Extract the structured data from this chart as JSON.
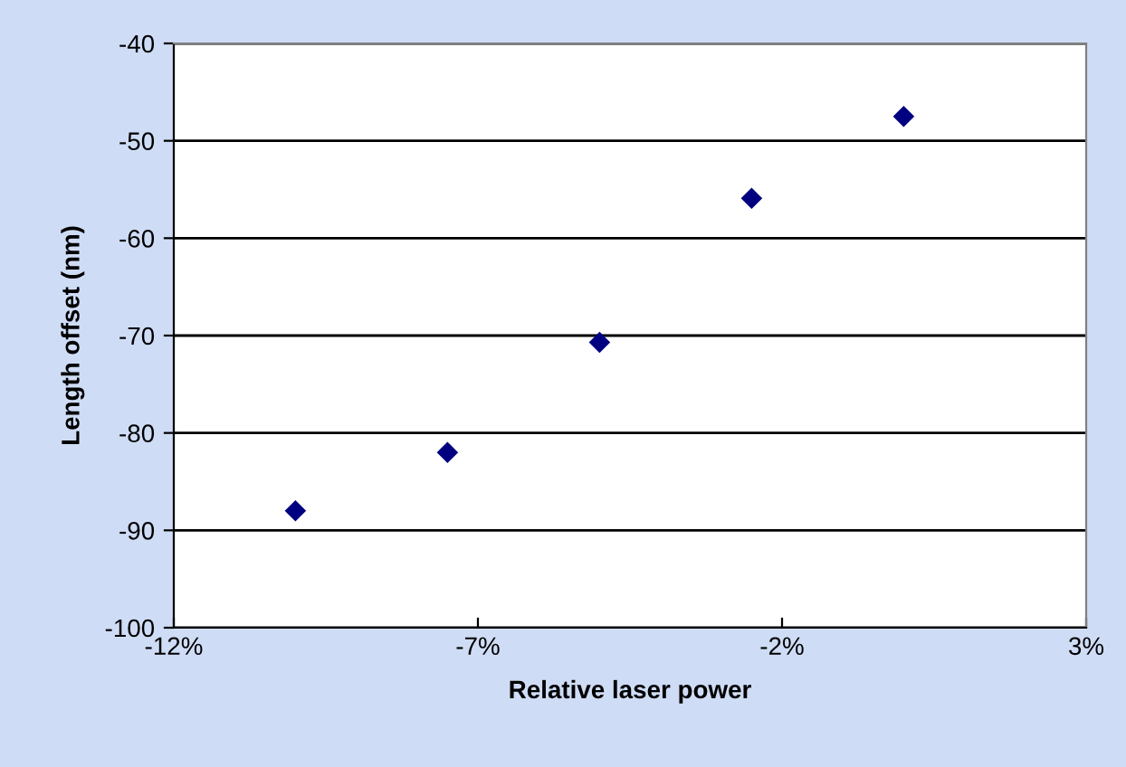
{
  "chart_data": {
    "type": "scatter",
    "xlabel": "Relative laser power",
    "ylabel": "Length offset (nm)",
    "x": [
      -10,
      -7.5,
      -5,
      -2.5,
      0
    ],
    "values": [
      -88,
      -82,
      -70.7,
      -55.9,
      -47.5
    ],
    "color": "#000080",
    "marker": "diamond",
    "xlim": [
      -12,
      3
    ],
    "xticks": [
      {
        "value": -12,
        "label": "-12%"
      },
      {
        "value": -7,
        "label": "-7%"
      },
      {
        "value": -2,
        "label": "-2%"
      },
      {
        "value": 3,
        "label": "3%"
      }
    ],
    "ylim": [
      -100,
      -40
    ],
    "yticks": [
      -100,
      -90,
      -80,
      -70,
      -60,
      -50,
      -40
    ],
    "grid": "y",
    "legend": false
  }
}
